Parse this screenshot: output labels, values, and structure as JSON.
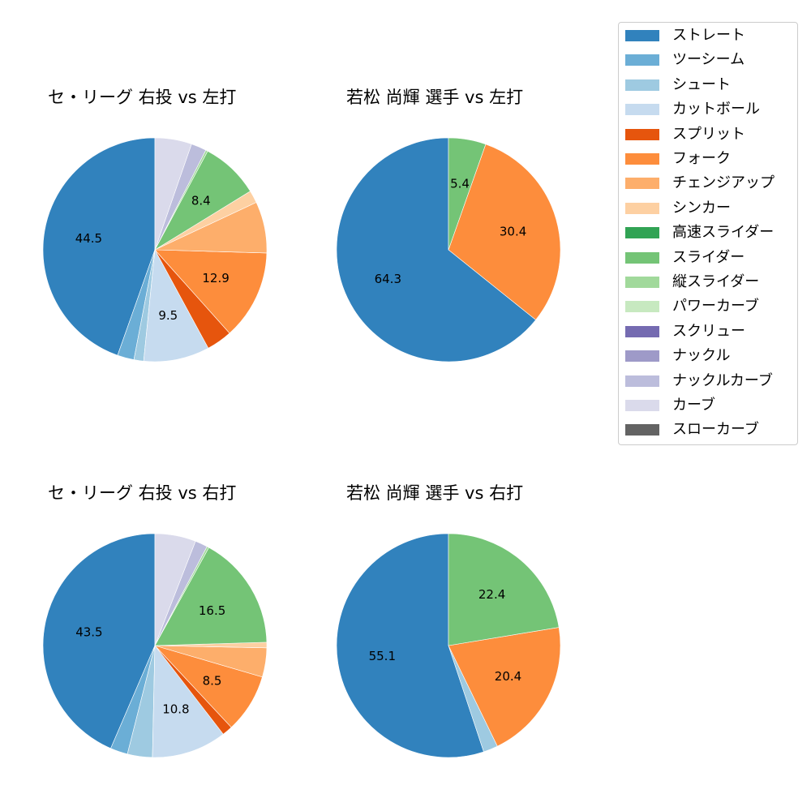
{
  "chart_data": [
    {
      "type": "pie",
      "title": "セ・リーグ 右投 vs 左打",
      "categories": [
        "ストレート",
        "ツーシーム",
        "シュート",
        "カットボール",
        "スプリット",
        "フォーク",
        "チェンジアップ",
        "シンカー",
        "スライダー",
        "縦スライダー",
        "ナックルカーブ",
        "カーブ"
      ],
      "values": [
        44.5,
        2.4,
        1.4,
        9.5,
        3.7,
        12.9,
        7.4,
        1.8,
        8.4,
        0.3,
        2.2,
        5.3
      ],
      "labels_shown": [
        "44.5",
        "",
        "",
        "9.5",
        "",
        "12.9",
        "",
        "",
        "8.4",
        "",
        "",
        ""
      ]
    },
    {
      "type": "pie",
      "title": "若松 尚輝 選手 vs 左打",
      "categories": [
        "ストレート",
        "フォーク",
        "スライダー"
      ],
      "values": [
        64.3,
        30.4,
        5.4
      ],
      "labels_shown": [
        "64.3",
        "30.4",
        "5.4"
      ]
    },
    {
      "type": "pie",
      "title": "セ・リーグ 右投 vs 右打",
      "categories": [
        "ストレート",
        "ツーシーム",
        "シュート",
        "カットボール",
        "スプリット",
        "フォーク",
        "チェンジアップ",
        "シンカー",
        "スライダー",
        "縦スライダー",
        "ナックルカーブ",
        "カーブ"
      ],
      "values": [
        43.5,
        2.5,
        3.6,
        10.8,
        1.5,
        8.5,
        4.2,
        0.8,
        16.5,
        0.3,
        1.8,
        5.9
      ],
      "labels_shown": [
        "43.5",
        "",
        "",
        "10.8",
        "",
        "8.5",
        "",
        "",
        "16.5",
        "",
        "",
        ""
      ]
    },
    {
      "type": "pie",
      "title": "若松 尚輝 選手 vs 右打",
      "categories": [
        "ストレート",
        "シュート",
        "フォーク",
        "スライダー"
      ],
      "values": [
        55.1,
        2.1,
        20.4,
        22.4
      ],
      "labels_shown": [
        "55.1",
        "",
        "20.4",
        "22.4"
      ]
    }
  ],
  "titles": {
    "top_left": "セ・リーグ 右投 vs 左打",
    "top_right": "若松 尚輝 選手 vs 左打",
    "bottom_left": "セ・リーグ 右投 vs 右打",
    "bottom_right": "若松 尚輝 選手 vs 右打"
  },
  "legend": {
    "items": [
      {
        "label": "ストレート",
        "color": "#3182bd"
      },
      {
        "label": "ツーシーム",
        "color": "#6baed6"
      },
      {
        "label": "シュート",
        "color": "#9ecae1"
      },
      {
        "label": "カットボール",
        "color": "#c6dbef"
      },
      {
        "label": "スプリット",
        "color": "#e6550d"
      },
      {
        "label": "フォーク",
        "color": "#fd8d3c"
      },
      {
        "label": "チェンジアップ",
        "color": "#fdae6b"
      },
      {
        "label": "シンカー",
        "color": "#fdd0a2"
      },
      {
        "label": "高速スライダー",
        "color": "#31a354"
      },
      {
        "label": "スライダー",
        "color": "#74c476"
      },
      {
        "label": "縦スライダー",
        "color": "#a1d99b"
      },
      {
        "label": "パワーカーブ",
        "color": "#c7e9c0"
      },
      {
        "label": "スクリュー",
        "color": "#756bb1"
      },
      {
        "label": "ナックル",
        "color": "#9e9ac8"
      },
      {
        "label": "ナックルカーブ",
        "color": "#bcbddc"
      },
      {
        "label": "カーブ",
        "color": "#dadaeb"
      },
      {
        "label": "スローカーブ",
        "color": "#636363"
      }
    ]
  }
}
